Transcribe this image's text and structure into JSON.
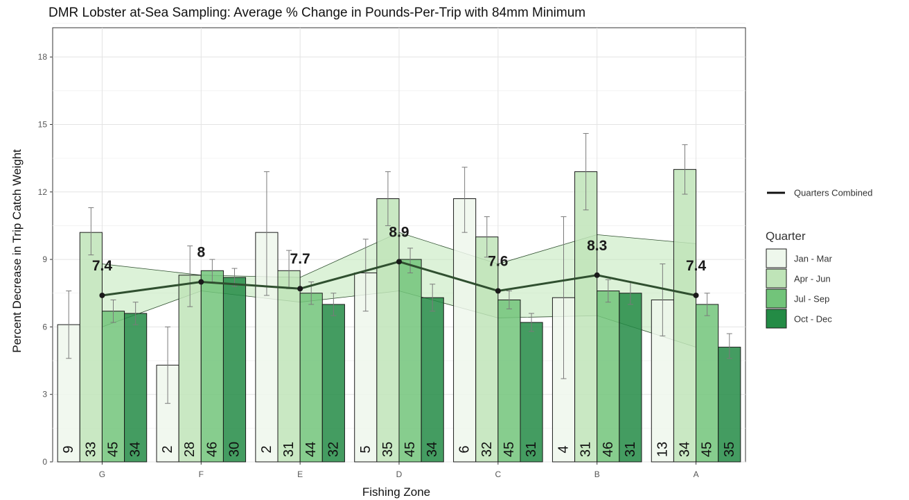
{
  "chart_data": {
    "type": "bar",
    "title": "DMR Lobster at-Sea Sampling: Average % Change in Pounds-Per-Trip with 84mm Minimum",
    "xlabel": "Fishing Zone",
    "ylabel": "Percent Decrease in Trip Catch Weight",
    "ylim": [
      0,
      19.3
    ],
    "yticks": [
      0,
      3,
      6,
      9,
      12,
      15,
      18
    ],
    "grid": true,
    "categories": [
      "G",
      "F",
      "E",
      "D",
      "C",
      "B",
      "A"
    ],
    "legend_title": "Quarter",
    "legend_position": "right",
    "series": [
      {
        "name": "Jan - Mar",
        "color": "#eef7ec",
        "values": [
          6.1,
          4.3,
          10.2,
          8.4,
          11.7,
          7.3,
          7.2
        ],
        "err_low": [
          4.6,
          2.6,
          7.4,
          6.7,
          10.2,
          3.7,
          5.6
        ],
        "err_high": [
          7.6,
          6.0,
          12.9,
          9.9,
          13.1,
          10.9,
          8.8
        ],
        "n": [
          "9",
          "2",
          "2",
          "5",
          "6",
          "4",
          "13"
        ]
      },
      {
        "name": "Apr - Jun",
        "color": "#bfe4b8",
        "values": [
          10.2,
          8.3,
          8.5,
          11.7,
          10.0,
          12.9,
          13.0
        ],
        "err_low": [
          9.2,
          6.9,
          7.7,
          10.5,
          9.1,
          11.2,
          11.9
        ],
        "err_high": [
          11.3,
          9.6,
          9.4,
          12.9,
          10.9,
          14.6,
          14.1
        ],
        "n": [
          "33",
          "28",
          "31",
          "35",
          "32",
          "31",
          "34"
        ]
      },
      {
        "name": "Jul - Sep",
        "color": "#72c47a",
        "values": [
          6.7,
          8.5,
          7.5,
          9.0,
          7.2,
          7.6,
          7.0
        ],
        "err_low": [
          6.2,
          8.0,
          7.0,
          8.4,
          6.8,
          7.1,
          6.5
        ],
        "err_high": [
          7.2,
          9.0,
          8.0,
          9.5,
          7.6,
          8.1,
          7.5
        ],
        "n": [
          "45",
          "46",
          "44",
          "45",
          "45",
          "46",
          "45"
        ]
      },
      {
        "name": "Oct - Dec",
        "color": "#238b45",
        "values": [
          6.6,
          8.2,
          7.0,
          7.3,
          6.2,
          7.5,
          5.1
        ],
        "err_low": [
          6.1,
          7.8,
          6.5,
          6.7,
          5.8,
          7.0,
          4.6
        ],
        "err_high": [
          7.1,
          8.6,
          7.5,
          7.9,
          6.6,
          8.0,
          5.7
        ],
        "n": [
          "34",
          "30",
          "32",
          "34",
          "31",
          "31",
          "35"
        ]
      }
    ],
    "combined": {
      "name": "Quarters Combined",
      "color": "#2f4f2f",
      "values": [
        7.4,
        8.0,
        7.7,
        8.9,
        7.6,
        8.3,
        7.4
      ],
      "labels": [
        "7.4",
        "8",
        "7.7",
        "8.9",
        "7.6",
        "8.3",
        "7.4"
      ],
      "band_low": [
        6.0,
        7.6,
        7.1,
        7.6,
        6.4,
        6.5,
        5.1
      ],
      "band_high": [
        8.8,
        8.3,
        8.2,
        10.2,
        8.8,
        10.1,
        9.7
      ],
      "band_color": "#bfe8b8"
    }
  }
}
